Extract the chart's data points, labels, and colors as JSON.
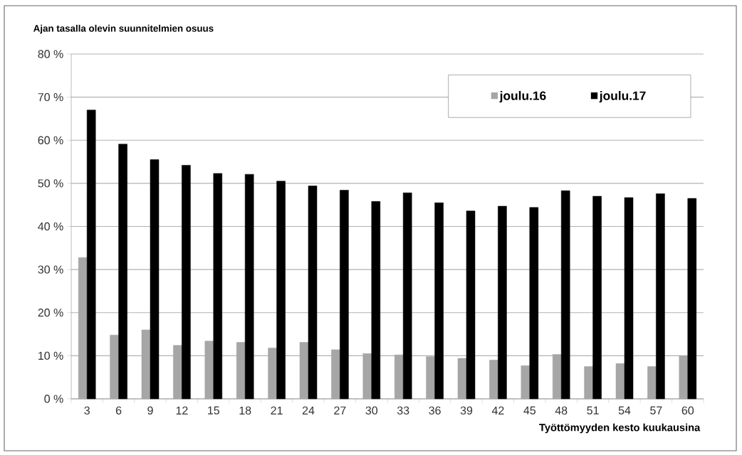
{
  "chart_data": {
    "type": "bar",
    "title": "Ajan tasalla olevin suunnitelmien osuus",
    "xlabel": "Työttömyyden kesto kuukausina",
    "categories": [
      "3",
      "6",
      "9",
      "12",
      "15",
      "18",
      "21",
      "24",
      "27",
      "30",
      "33",
      "36",
      "39",
      "42",
      "45",
      "48",
      "51",
      "54",
      "57",
      "60"
    ],
    "series": [
      {
        "name": "joulu.16",
        "color": "#a6a6a6",
        "values": [
          32.8,
          14.8,
          16.0,
          12.4,
          13.4,
          13.1,
          11.8,
          13.1,
          11.4,
          10.5,
          10.2,
          9.8,
          9.4,
          9.0,
          7.7,
          10.3,
          7.5,
          8.2,
          7.5,
          10.0
        ]
      },
      {
        "name": "joulu.17",
        "color": "#000000",
        "values": [
          67.0,
          59.1,
          55.5,
          54.2,
          52.3,
          52.1,
          50.5,
          49.4,
          48.4,
          45.8,
          47.8,
          45.5,
          43.6,
          44.7,
          44.4,
          48.3,
          47.0,
          46.7,
          47.6,
          46.5
        ]
      }
    ],
    "ylim": [
      0,
      80
    ],
    "yticks": [
      {
        "value": 0,
        "label": "0 %"
      },
      {
        "value": 10,
        "label": "10 %"
      },
      {
        "value": 20,
        "label": "20 %"
      },
      {
        "value": 30,
        "label": "30 %"
      },
      {
        "value": 40,
        "label": "40 %"
      },
      {
        "value": 50,
        "label": "50 %"
      },
      {
        "value": 60,
        "label": "60 %"
      },
      {
        "value": 70,
        "label": "70 %"
      },
      {
        "value": 80,
        "label": "80 %"
      }
    ],
    "grid": "y",
    "legend": "top right"
  }
}
